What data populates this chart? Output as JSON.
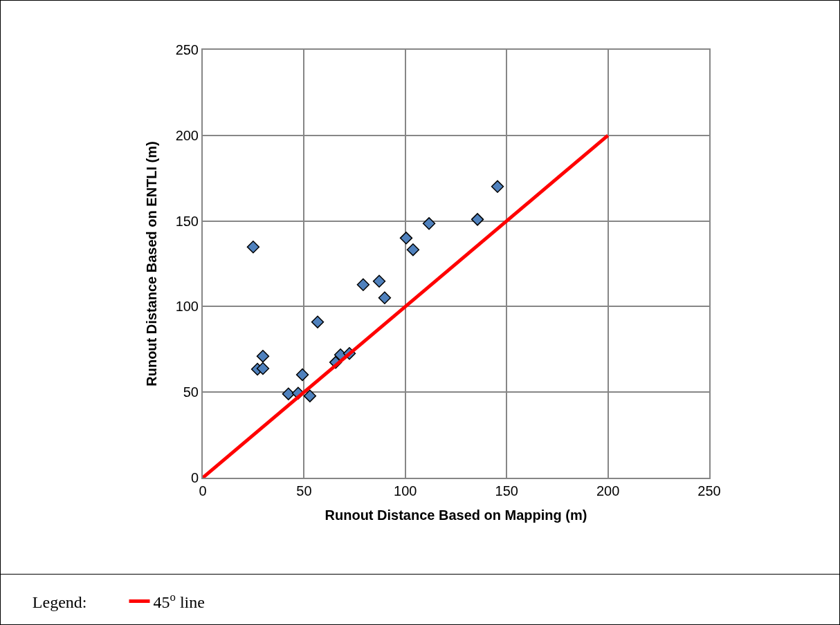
{
  "chart_data": {
    "type": "scatter",
    "xlabel": "Runout Distance Based on Mapping (m)",
    "ylabel": "Runout Distance Based on ENTLI (m)",
    "legend_title": "Legend:",
    "xlim": [
      0,
      250
    ],
    "xticks": [
      0,
      50,
      100,
      150,
      200,
      250
    ],
    "ylim": [
      0,
      250
    ],
    "yticks": [
      0,
      50,
      100,
      150,
      200,
      250
    ],
    "grid": true,
    "legend": "bottom",
    "series": [
      {
        "marker": "diamond",
        "color": "#4f81bd",
        "x": [
          24.9,
          27,
          29.7,
          29.7,
          42.3,
          47.1,
          49.2,
          52.9,
          56.7,
          65.6,
          68,
          72.4,
          79.2,
          87.1,
          89.8,
          100.4,
          103.8,
          111.7,
          135.6,
          145.5
        ],
        "values": [
          134.8,
          63.4,
          63.8,
          71,
          49,
          49.4,
          60.2,
          47.8,
          91,
          67.4,
          71.8,
          72.6,
          112.8,
          114.8,
          105.1,
          140,
          133.2,
          148.5,
          150.9,
          170.1
        ]
      },
      {
        "type": "line",
        "marker": "none",
        "name": "45$^{o}$ line",
        "color": "#ff0000",
        "x": [
          0,
          200
        ],
        "values": [
          0,
          200
        ]
      }
    ]
  }
}
